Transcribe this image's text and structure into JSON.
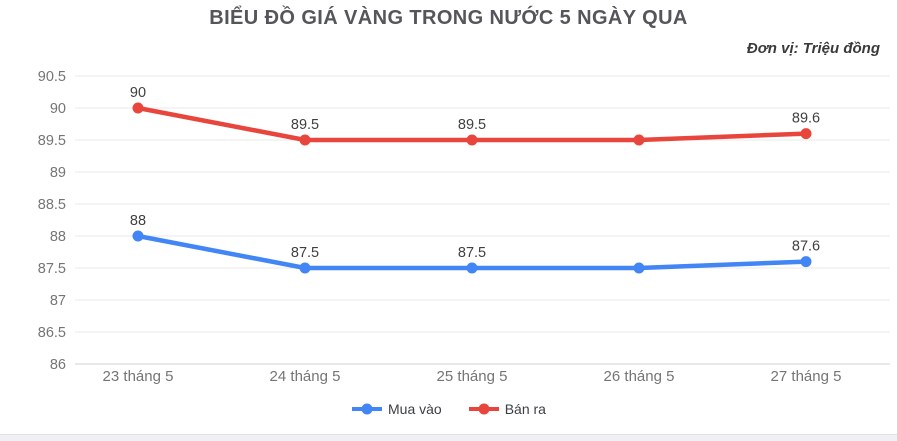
{
  "title": "BIỂU ĐỒ GIÁ VÀNG TRONG NƯỚC 5 NGÀY QUA",
  "subtitle": "Đơn vị: Triệu đồng",
  "chart_data": {
    "type": "line",
    "categories": [
      "23 tháng 5",
      "24 tháng 5",
      "25 tháng 5",
      "26 tháng 5",
      "27 tháng 5"
    ],
    "series": [
      {
        "name": "Mua vào",
        "color": "#4285f4",
        "values": [
          88,
          87.5,
          87.5,
          87.5,
          87.6
        ],
        "point_labels": [
          "88",
          "87.5",
          "87.5",
          "",
          "87.6"
        ]
      },
      {
        "name": "Bán ra",
        "color": "#e8463c",
        "values": [
          90,
          89.5,
          89.5,
          89.5,
          89.6
        ],
        "point_labels": [
          "90",
          "89.5",
          "89.5",
          "",
          "89.6"
        ]
      }
    ],
    "ylim": [
      86,
      90.5
    ],
    "ytick_labels": [
      "90.5",
      "90",
      "89.5",
      "89",
      "88.5",
      "88",
      "87.5",
      "87",
      "86.5",
      "86"
    ],
    "grid": true,
    "legend_position": "bottom"
  },
  "colors": {
    "grid_line": "#e8e8e8",
    "axis_line": "#d0d0d0",
    "tick_text": "#757575",
    "data_label_text": "#3f3f41",
    "title_text": "#55565b"
  }
}
